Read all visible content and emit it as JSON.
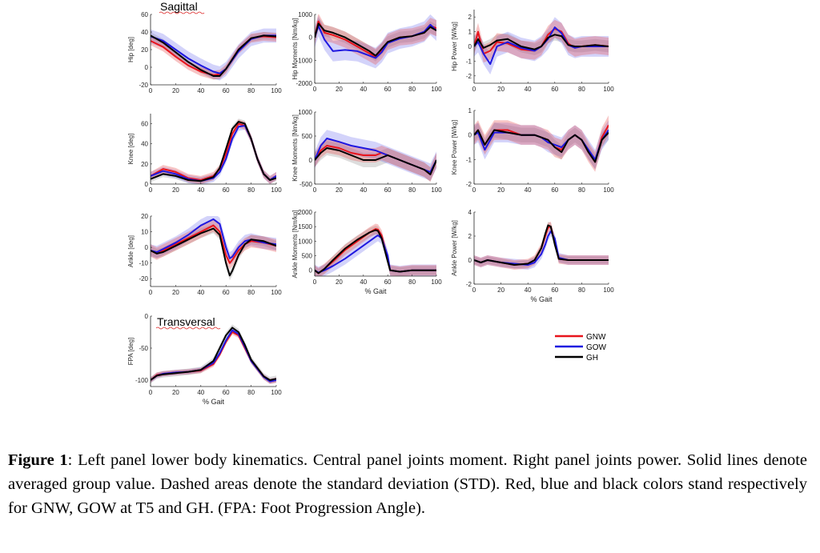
{
  "sections": {
    "sagittal": "Sagittal",
    "transversal": "Transversal"
  },
  "legend": [
    {
      "name": "GNW",
      "color": "#e8141c"
    },
    {
      "name": "GOW",
      "color": "#1f18e0"
    },
    {
      "name": "GH",
      "color": "#000000"
    }
  ],
  "caption": {
    "label": "Figure 1",
    "text_1": ": Left panel lower body kinematics. Central panel joints moment. Right panel joints power. Solid lines denote averaged group value. Dashed areas denote the standard deviation (STD). Red, blue and black colors stand respectively for GNW, GOW at T5 and GH. (FPA: Foot Progression Angle)."
  },
  "chart_data": [
    {
      "id": "hip",
      "type": "line",
      "ylabel": "Hip [deg]",
      "xlabel": "",
      "ylim": [
        -20,
        60
      ],
      "yticks": [
        -20,
        0,
        20,
        40,
        60
      ],
      "xlim": [
        0,
        100
      ],
      "xticks": [
        0,
        20,
        40,
        60,
        80,
        100
      ],
      "x": [
        0,
        10,
        20,
        30,
        40,
        50,
        55,
        60,
        70,
        80,
        90,
        100
      ],
      "series": [
        {
          "name": "GNW",
          "values": [
            30,
            23,
            12,
            2,
            -5,
            -9,
            -8,
            -2,
            20,
            33,
            35,
            34
          ],
          "sd": 5
        },
        {
          "name": "GOW",
          "values": [
            35,
            30,
            20,
            10,
            2,
            -5,
            -7,
            -2,
            18,
            32,
            36,
            36
          ],
          "sd": 8
        },
        {
          "name": "GH",
          "values": [
            36,
            28,
            17,
            6,
            -3,
            -10,
            -10,
            -2,
            20,
            33,
            36,
            35
          ],
          "sd": 4
        }
      ]
    },
    {
      "id": "hipmom",
      "type": "line",
      "ylabel": "Hip Moments [Nm/kg]",
      "xlabel": "",
      "ylim": [
        -2000,
        1000
      ],
      "yticks": [
        -2000,
        -1000,
        0,
        1000
      ],
      "xlim": [
        0,
        100
      ],
      "xticks": [
        0,
        20,
        40,
        60,
        80,
        100
      ],
      "x": [
        0,
        3,
        8,
        15,
        25,
        35,
        45,
        50,
        55,
        60,
        70,
        80,
        90,
        95,
        100
      ],
      "series": [
        {
          "name": "GNW",
          "values": [
            0,
            700,
            200,
            100,
            -100,
            -400,
            -700,
            -850,
            -600,
            -200,
            0,
            50,
            200,
            500,
            400
          ],
          "sd": 350
        },
        {
          "name": "GOW",
          "values": [
            0,
            500,
            -100,
            -600,
            -550,
            -600,
            -800,
            -900,
            -650,
            -250,
            -50,
            50,
            250,
            550,
            300
          ],
          "sd": 450
        },
        {
          "name": "GH",
          "values": [
            0,
            600,
            300,
            200,
            0,
            -300,
            -600,
            -800,
            -500,
            -200,
            0,
            50,
            200,
            450,
            300
          ],
          "sd": 250
        }
      ]
    },
    {
      "id": "hippow",
      "type": "line",
      "ylabel": "Hip Power [W/kg]",
      "xlabel": "",
      "ylim": [
        -2.5,
        2.5
      ],
      "yticks": [
        -2,
        -1,
        0,
        1,
        2
      ],
      "xlim": [
        0,
        100
      ],
      "xticks": [
        0,
        20,
        40,
        60,
        80,
        100
      ],
      "x": [
        0,
        3,
        7,
        12,
        17,
        25,
        35,
        45,
        50,
        55,
        60,
        65,
        70,
        75,
        80,
        90,
        100
      ],
      "series": [
        {
          "name": "GNW",
          "values": [
            0,
            1,
            -0.5,
            -0.3,
            0.3,
            0.2,
            -0.2,
            -0.3,
            0,
            0.8,
            1.2,
            1,
            0.2,
            -0.1,
            0,
            0.1,
            0
          ],
          "sd": 0.6
        },
        {
          "name": "GOW",
          "values": [
            0,
            0.3,
            -0.5,
            -1.2,
            0,
            0.3,
            -0.1,
            -0.3,
            0,
            0.5,
            1.3,
            0.9,
            0.1,
            -0.1,
            0,
            0,
            0
          ],
          "sd": 0.7
        },
        {
          "name": "GH",
          "values": [
            0,
            0.5,
            -0.1,
            0.1,
            0.4,
            0.5,
            0,
            -0.2,
            0,
            0.6,
            0.8,
            0.7,
            0.1,
            0,
            0,
            0.1,
            0
          ],
          "sd": 0.4
        }
      ]
    },
    {
      "id": "knee",
      "type": "line",
      "ylabel": "Knee [deg]",
      "xlabel": "",
      "ylim": [
        0,
        70
      ],
      "yticks": [
        0,
        20,
        40,
        60
      ],
      "xlim": [
        0,
        100
      ],
      "xticks": [
        0,
        20,
        40,
        60,
        80,
        100
      ],
      "x": [
        0,
        10,
        20,
        30,
        40,
        50,
        55,
        60,
        65,
        70,
        75,
        80,
        85,
        90,
        95,
        100
      ],
      "series": [
        {
          "name": "GNW",
          "values": [
            8,
            15,
            12,
            6,
            4,
            8,
            15,
            30,
            50,
            60,
            58,
            45,
            25,
            10,
            4,
            8
          ],
          "sd": 4
        },
        {
          "name": "GOW",
          "values": [
            8,
            13,
            10,
            5,
            3,
            6,
            12,
            25,
            45,
            57,
            58,
            45,
            25,
            10,
            4,
            8
          ],
          "sd": 4
        },
        {
          "name": "GH",
          "values": [
            5,
            10,
            8,
            4,
            3,
            7,
            16,
            35,
            55,
            62,
            60,
            45,
            25,
            10,
            4,
            6
          ],
          "sd": 3
        }
      ]
    },
    {
      "id": "kneemom",
      "type": "line",
      "ylabel": "Knee Moments [Nm/kg]",
      "xlabel": "",
      "ylim": [
        -500,
        1000
      ],
      "yticks": [
        -500,
        0,
        500,
        1000
      ],
      "xlim": [
        0,
        100
      ],
      "xticks": [
        0,
        20,
        40,
        60,
        80,
        100
      ],
      "x": [
        0,
        5,
        10,
        20,
        30,
        40,
        50,
        55,
        60,
        70,
        80,
        90,
        95,
        100
      ],
      "series": [
        {
          "name": "GNW",
          "values": [
            0,
            200,
            300,
            250,
            150,
            100,
            100,
            150,
            100,
            0,
            -100,
            -200,
            -300,
            0
          ],
          "sd": 150
        },
        {
          "name": "GOW",
          "values": [
            0,
            300,
            450,
            380,
            300,
            250,
            200,
            150,
            100,
            0,
            -100,
            -200,
            -250,
            0
          ],
          "sd": 180
        },
        {
          "name": "GH",
          "values": [
            0,
            150,
            250,
            200,
            100,
            0,
            0,
            50,
            100,
            0,
            -100,
            -200,
            -300,
            0
          ],
          "sd": 150
        }
      ]
    },
    {
      "id": "kneepow",
      "type": "line",
      "ylabel": "Knee Power [W/kg]",
      "xlabel": "",
      "ylim": [
        -2,
        1
      ],
      "yticks": [
        -2,
        -1,
        0,
        1
      ],
      "xlim": [
        0,
        100
      ],
      "xticks": [
        0,
        20,
        40,
        60,
        80,
        100
      ],
      "x": [
        0,
        3,
        8,
        15,
        25,
        35,
        45,
        50,
        55,
        60,
        65,
        70,
        75,
        80,
        85,
        90,
        95,
        100
      ],
      "series": [
        {
          "name": "GNW",
          "values": [
            0,
            0.2,
            -0.4,
            0.2,
            0.2,
            0,
            0,
            -0.1,
            -0.2,
            -0.5,
            -0.6,
            -0.2,
            0,
            -0.2,
            -0.7,
            -1.1,
            -0.1,
            0.4
          ],
          "sd": 0.4
        },
        {
          "name": "GOW",
          "values": [
            0,
            0.1,
            -0.6,
            0.1,
            0.1,
            0,
            0,
            -0.1,
            -0.3,
            -0.4,
            -0.5,
            -0.2,
            0,
            -0.2,
            -0.6,
            -1,
            -0.2,
            0.2
          ],
          "sd": 0.4
        },
        {
          "name": "GH",
          "values": [
            0,
            0.2,
            -0.4,
            0.2,
            0.1,
            0,
            0,
            -0.1,
            -0.2,
            -0.5,
            -0.7,
            -0.2,
            0,
            -0.2,
            -0.7,
            -1.1,
            -0.2,
            0.1
          ],
          "sd": 0.3
        }
      ]
    },
    {
      "id": "ankle",
      "type": "line",
      "ylabel": "Ankle [deg]",
      "xlabel": "",
      "ylim": [
        -25,
        20
      ],
      "yticks": [
        -20,
        -10,
        0,
        10,
        20
      ],
      "xlim": [
        0,
        100
      ],
      "xticks": [
        0,
        20,
        40,
        60,
        80,
        100
      ],
      "x": [
        0,
        5,
        10,
        20,
        30,
        40,
        50,
        55,
        60,
        63,
        65,
        70,
        75,
        80,
        90,
        100
      ],
      "series": [
        {
          "name": "GNW",
          "values": [
            -2,
            -4,
            -2,
            2,
            6,
            10,
            14,
            10,
            -5,
            -10,
            -8,
            -2,
            2,
            4,
            3,
            1
          ],
          "sd": 4
        },
        {
          "name": "GOW",
          "values": [
            -2,
            -3,
            -1,
            3,
            8,
            14,
            18,
            15,
            0,
            -7,
            -6,
            0,
            4,
            5,
            3,
            2
          ],
          "sd": 4
        },
        {
          "name": "GH",
          "values": [
            -2,
            -4,
            -3,
            1,
            5,
            9,
            12,
            8,
            -10,
            -18,
            -15,
            -5,
            2,
            5,
            4,
            1
          ],
          "sd": 3
        }
      ]
    },
    {
      "id": "anklemom",
      "type": "line",
      "ylabel": "Ankle Moments [Nm/kg]",
      "xlabel": "% Gait",
      "ylim": [
        -200,
        2000
      ],
      "yticks": [
        0,
        500,
        1000,
        1500,
        2000
      ],
      "xlim": [
        0,
        100
      ],
      "xticks": [
        0,
        20,
        40,
        60,
        80,
        100
      ],
      "x": [
        0,
        3,
        8,
        15,
        25,
        35,
        45,
        50,
        52,
        55,
        60,
        62,
        70,
        80,
        90,
        100
      ],
      "series": [
        {
          "name": "GNW",
          "values": [
            0,
            -100,
            50,
            300,
            700,
            1000,
            1300,
            1420,
            1400,
            1200,
            400,
            0,
            -50,
            0,
            0,
            0
          ],
          "sd": 180
        },
        {
          "name": "GOW",
          "values": [
            0,
            -80,
            0,
            150,
            400,
            700,
            1000,
            1150,
            1200,
            1100,
            500,
            0,
            -50,
            0,
            0,
            0
          ],
          "sd": 200
        },
        {
          "name": "GH",
          "values": [
            0,
            -100,
            50,
            350,
            750,
            1050,
            1300,
            1380,
            1350,
            1100,
            300,
            0,
            -50,
            0,
            0,
            0
          ],
          "sd": 150
        }
      ]
    },
    {
      "id": "anklepow",
      "type": "line",
      "ylabel": "Ankle Power [W/kg]",
      "xlabel": "% Gait",
      "ylim": [
        -2,
        4
      ],
      "yticks": [
        -2,
        0,
        2,
        4
      ],
      "xlim": [
        0,
        100
      ],
      "xticks": [
        0,
        20,
        40,
        60,
        80,
        100
      ],
      "x": [
        0,
        5,
        10,
        20,
        30,
        40,
        45,
        50,
        53,
        55,
        57,
        60,
        63,
        70,
        80,
        90,
        100
      ],
      "series": [
        {
          "name": "GNW",
          "values": [
            0,
            -0.2,
            0,
            -0.2,
            -0.4,
            -0.3,
            0,
            1,
            2,
            2.7,
            2.8,
            1.5,
            0.1,
            0,
            0,
            0,
            0
          ],
          "sd": 0.4
        },
        {
          "name": "GOW",
          "values": [
            0,
            -0.2,
            0,
            -0.2,
            -0.3,
            -0.4,
            -0.2,
            0.5,
            1.3,
            2,
            2.4,
            1.8,
            0.2,
            0,
            0,
            0,
            0
          ],
          "sd": 0.4
        },
        {
          "name": "GH",
          "values": [
            0,
            -0.2,
            0,
            -0.2,
            -0.4,
            -0.3,
            0,
            1,
            2.2,
            2.9,
            2.8,
            1.3,
            0.1,
            0,
            0,
            0,
            0
          ],
          "sd": 0.3
        }
      ]
    },
    {
      "id": "fpa",
      "type": "line",
      "ylabel": "FPA [deg]",
      "xlabel": "% Gait",
      "ylim": [
        -110,
        0
      ],
      "yticks": [
        -100,
        -50,
        0
      ],
      "xlim": [
        0,
        100
      ],
      "xticks": [
        0,
        20,
        40,
        60,
        80,
        100
      ],
      "x": [
        0,
        5,
        10,
        20,
        30,
        40,
        50,
        55,
        60,
        65,
        70,
        75,
        80,
        90,
        95,
        100
      ],
      "series": [
        {
          "name": "GNW",
          "values": [
            -100,
            -92,
            -90,
            -88,
            -87,
            -85,
            -75,
            -60,
            -40,
            -25,
            -30,
            -50,
            -70,
            -95,
            -102,
            -100
          ],
          "sd": 4
        },
        {
          "name": "GOW",
          "values": [
            -100,
            -93,
            -90,
            -88,
            -87,
            -84,
            -73,
            -58,
            -38,
            -22,
            -28,
            -48,
            -70,
            -95,
            -102,
            -100
          ],
          "sd": 4
        },
        {
          "name": "GH",
          "values": [
            -100,
            -93,
            -91,
            -89,
            -87,
            -84,
            -70,
            -50,
            -30,
            -18,
            -25,
            -45,
            -68,
            -94,
            -100,
            -98
          ],
          "sd": 5
        }
      ]
    }
  ]
}
